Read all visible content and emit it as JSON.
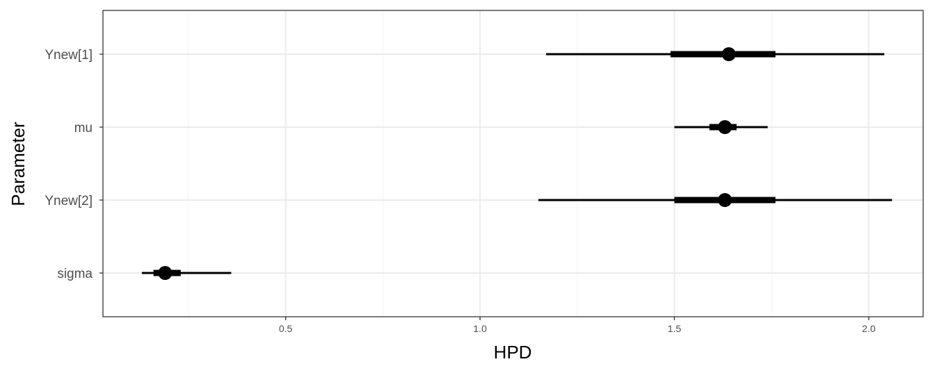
{
  "chart_data": {
    "type": "interval",
    "xlabel": "HPD",
    "ylabel": "Parameter",
    "xlim": [
      0.03,
      2.14
    ],
    "x_ticks": [
      {
        "value": 0.5,
        "label": "0.5"
      },
      {
        "value": 1.0,
        "label": "1.0"
      },
      {
        "value": 1.5,
        "label": "1.5"
      },
      {
        "value": 2.0,
        "label": "2.0"
      }
    ],
    "x_minor_ticks": [
      0.25,
      0.75,
      1.25,
      1.75
    ],
    "grid": true,
    "parameters": [
      {
        "label": "Ynew[1]",
        "point": 1.64,
        "inner": [
          1.49,
          1.76
        ],
        "outer": [
          1.17,
          2.04
        ]
      },
      {
        "label": "mu",
        "point": 1.63,
        "inner": [
          1.59,
          1.66
        ],
        "outer": [
          1.5,
          1.74
        ]
      },
      {
        "label": "Ynew[2]",
        "point": 1.63,
        "inner": [
          1.5,
          1.76
        ],
        "outer": [
          1.15,
          2.06
        ]
      },
      {
        "label": "sigma",
        "point": 0.19,
        "inner": [
          0.16,
          0.23
        ],
        "outer": [
          0.13,
          0.36
        ]
      }
    ],
    "colors": {
      "marks": "#000000",
      "grid_major": "#ebebeb",
      "grid_minor": "#f3f3f3",
      "border": "#333333"
    }
  }
}
